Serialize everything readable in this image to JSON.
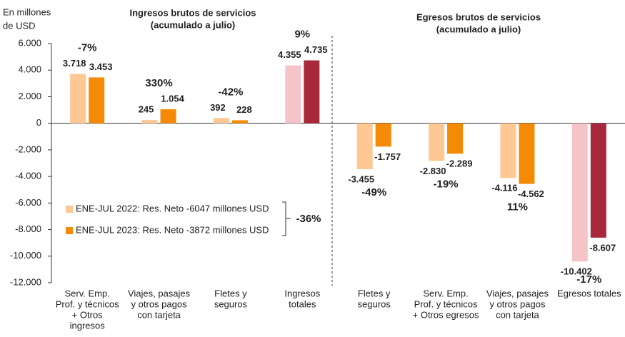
{
  "chart_data": {
    "type": "bar",
    "y_label": [
      "En millones",
      "de USD"
    ],
    "section_titles": [
      [
        "Ingresos brutos de servicios",
        "(acumulado a julio)"
      ],
      [
        "Egresos brutos de servicios",
        "(acumulado a julio)"
      ]
    ],
    "categories": [
      [
        "Serv. Emp.",
        "Prof. y técnicos",
        "+ Otros",
        "ingresos"
      ],
      [
        "Viajes, pasajes",
        "y otros pagos",
        "con tarjeta"
      ],
      [
        "Fletes y",
        "seguros"
      ],
      [
        "Ingresos",
        "totales"
      ],
      [
        "Fletes y",
        "seguros"
      ],
      [
        "Serv. Emp.",
        "Prof. y técnicos",
        "+ Otros egresos"
      ],
      [
        "Viajes, pasajes",
        "y otros pagos",
        "con tarjeta"
      ],
      [
        "Egresos totales"
      ]
    ],
    "series": [
      {
        "name": "ENE-JUL 2022: Res. Neto -6047 millones USD",
        "color": "#fdc893",
        "colors": [
          "#fdc893",
          "#fdc893",
          "#fdc893",
          "#f5c4c8",
          "#fdc893",
          "#fdc893",
          "#fdc893",
          "#f5c4c8"
        ],
        "values": [
          3718,
          245,
          392,
          4355,
          -3455,
          -2830,
          -4116,
          -10402
        ],
        "value_labels": [
          "3.718",
          "245",
          "392",
          "4.355",
          "-3.455",
          "-2.830",
          "-4.116",
          "-10.402"
        ]
      },
      {
        "name": "ENE-JUL 2023: Res. Neto -3872 millones USD",
        "color": "#f58a07",
        "colors": [
          "#f58a07",
          "#f58a07",
          "#f58a07",
          "#a8283c",
          "#f58a07",
          "#f58a07",
          "#f58a07",
          "#a8283c"
        ],
        "values": [
          3453,
          1054,
          228,
          4735,
          -1757,
          -2289,
          -4562,
          -8607
        ],
        "value_labels": [
          "3.453",
          "1.054",
          "228",
          "4.735",
          "-1.757",
          "-2.289",
          "-4.562",
          "-8.607"
        ]
      }
    ],
    "changes": [
      "-7%",
      "330%",
      "-42%",
      "9%",
      "-49%",
      "-19%",
      "11%",
      "-17%"
    ],
    "change_colors": [
      "#e8202a",
      "#22b14c",
      "#e8202a",
      "#22b14c",
      "#e8202a",
      "#e8202a",
      "#22b14c",
      "#e8202a"
    ],
    "net_change": "-36%",
    "net_change_color": "#e8202a",
    "ylim": [
      -12000,
      6000
    ],
    "yticks": [
      {
        "value": 6000,
        "label": "6.000"
      },
      {
        "value": 4000,
        "label": "4.000"
      },
      {
        "value": 2000,
        "label": "2.000"
      },
      0,
      {
        "value": -2000,
        "label": "-2.000"
      },
      {
        "value": -4000,
        "label": "-4.000"
      },
      {
        "value": -6000,
        "label": "-6.000"
      },
      {
        "value": -8000,
        "label": "-8.000"
      },
      {
        "value": -10000,
        "label": "-10.000"
      },
      {
        "value": -12000,
        "label": "-12.000"
      }
    ]
  }
}
